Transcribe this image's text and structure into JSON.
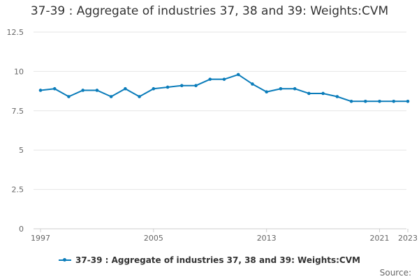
{
  "chart_data": {
    "type": "line",
    "title": "37-39 : Aggregate of industries 37, 38 and 39: Weights:CVM",
    "xlabel": "",
    "ylabel": "",
    "x": [
      1997,
      1998,
      1999,
      2000,
      2001,
      2002,
      2003,
      2004,
      2005,
      2006,
      2007,
      2008,
      2009,
      2010,
      2011,
      2012,
      2013,
      2014,
      2015,
      2016,
      2017,
      2018,
      2019,
      2020,
      2021,
      2022,
      2023
    ],
    "x_tick_labels": [
      "1997",
      "2005",
      "2013",
      "2021",
      "2023"
    ],
    "x_tick_values": [
      1997,
      2005,
      2013,
      2021,
      2023
    ],
    "y_tick_labels": [
      "0",
      "2.5",
      "5",
      "7.5",
      "10",
      "12.5"
    ],
    "y_tick_values": [
      0,
      2.5,
      5,
      7.5,
      10,
      12.5
    ],
    "ylim": [
      0,
      12.5
    ],
    "xlim": [
      1997,
      2023
    ],
    "grid": true,
    "legend_position": "bottom",
    "series": [
      {
        "name": "37-39 : Aggregate of industries 37, 38 and 39: Weights:CVM",
        "color": "#0a7cba",
        "values": [
          8.8,
          8.9,
          8.4,
          8.8,
          8.8,
          8.4,
          8.9,
          8.4,
          8.9,
          9.0,
          9.1,
          9.1,
          9.5,
          9.5,
          9.8,
          9.2,
          8.7,
          8.9,
          8.9,
          8.6,
          8.6,
          8.4,
          8.1,
          8.1,
          8.1,
          8.1,
          8.1
        ]
      }
    ]
  },
  "source_label": "Source:"
}
